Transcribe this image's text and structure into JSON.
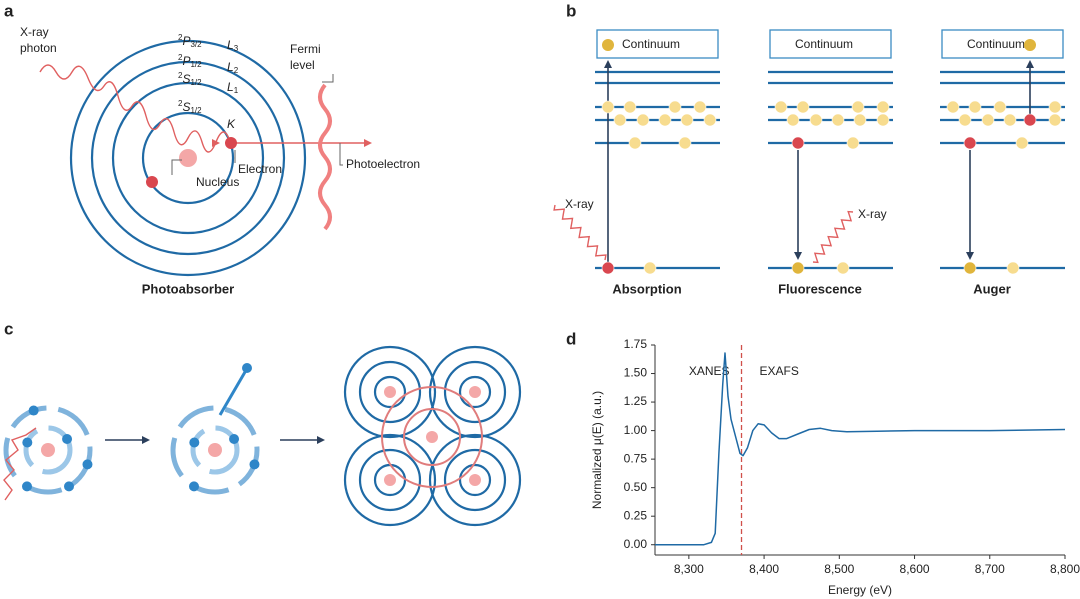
{
  "panels": {
    "a": {
      "label": "a",
      "xray": [
        "X-ray",
        "photon"
      ],
      "levels": [
        {
          "sup": "2",
          "letter": "P",
          "sub": "3/2",
          "shell": "L",
          "shell_sub": "3"
        },
        {
          "sup": "2",
          "letter": "P",
          "sub": "1/2",
          "shell": "L",
          "shell_sub": "2"
        },
        {
          "sup": "2",
          "letter": "S",
          "sub": "1/2",
          "shell": "L",
          "shell_sub": "1"
        },
        {
          "sup": "2",
          "letter": "S",
          "sub": "1/2",
          "shell": "K"
        }
      ],
      "nucleus": "Nucleus",
      "electron": "Electron",
      "fermi": [
        "Fermi",
        "level"
      ],
      "photoelectron": "Photoelectron",
      "caption": "Photoabsorber"
    },
    "b": {
      "label": "b",
      "columns": [
        {
          "continuum": "Continuum",
          "xray": "X-ray",
          "caption": "Absorption"
        },
        {
          "continuum": "Continuum",
          "xray": "X-ray",
          "caption": "Fluorescence"
        },
        {
          "continuum": "Continuum",
          "caption": "Auger"
        }
      ]
    },
    "c": {
      "label": "c"
    }
  },
  "chart_data": {
    "type": "line",
    "panel_label": "d",
    "x_label": "Energy (eV)",
    "y_label": "Normalized μ(E) (a.u.)",
    "annotations": [
      "XANES",
      "EXAFS"
    ],
    "edge": 8370,
    "edge_color": "#d0504a",
    "xlim": [
      8255,
      8800
    ],
    "ylim": [
      -0.09,
      1.75
    ],
    "xticks": [
      {
        "value": 8300,
        "label": "8,300"
      },
      {
        "value": 8400,
        "label": "8,400"
      },
      {
        "value": 8500,
        "label": "8,500"
      },
      {
        "value": 8600,
        "label": "8,600"
      },
      {
        "value": 8700,
        "label": "8,700"
      },
      {
        "value": 8800,
        "label": "8,800"
      }
    ],
    "yticks": [
      {
        "value": 0,
        "label": "0.00"
      },
      0.25,
      {
        "value": 0.5,
        "label": "0.50"
      },
      0.75,
      {
        "value": 1,
        "label": "1.00"
      },
      1.25,
      {
        "value": 1.5,
        "label": "1.50"
      },
      1.75
    ],
    "series": [
      {
        "color": "#1f6aa5",
        "x": [
          8255,
          8320,
          8330,
          8335,
          8340,
          8345,
          8348,
          8352,
          8356,
          8362,
          8368,
          8372,
          8378,
          8385,
          8392,
          8400,
          8410,
          8420,
          8430,
          8445,
          8460,
          8475,
          8490,
          8510,
          8550,
          8600,
          8700,
          8800
        ],
        "values": [
          0,
          0,
          0.02,
          0.1,
          0.8,
          1.4,
          1.68,
          1.3,
          1.1,
          0.95,
          0.8,
          0.78,
          0.85,
          1.0,
          1.06,
          1.05,
          0.98,
          0.93,
          0.93,
          0.97,
          1.01,
          1.02,
          1.0,
          0.99,
          0.995,
          1.0,
          1.0,
          1.01
        ]
      }
    ]
  }
}
